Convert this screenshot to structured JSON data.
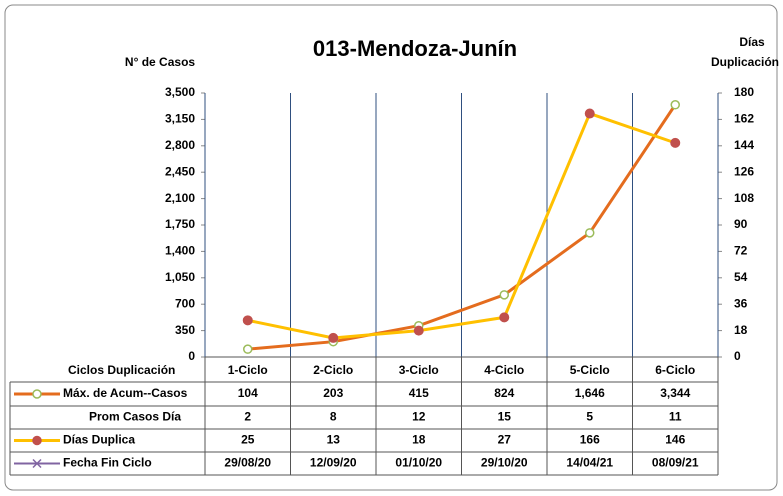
{
  "chart_data": {
    "type": "line",
    "title": "013-Mendoza-Junín",
    "ylabel": "N° de Casos",
    "y2label_lines": [
      "Días",
      "Duplicación"
    ],
    "table_header": "Ciclos Duplicación",
    "categories": [
      "1-Ciclo",
      "2-Ciclo",
      "3-Ciclo",
      "4-Ciclo",
      "5-Ciclo",
      "6-Ciclo"
    ],
    "ylim": [
      0,
      3500
    ],
    "yticks": [
      0,
      350,
      700,
      {
        "value": 1050,
        "label": "1,050"
      },
      {
        "value": 1400,
        "label": "1,400"
      },
      {
        "value": 1750,
        "label": "1,750"
      },
      {
        "value": 2100,
        "label": "2,100"
      },
      {
        "value": 2450,
        "label": "2,450"
      },
      {
        "value": 2800,
        "label": "2,800"
      },
      {
        "value": 3150,
        "label": "3,150"
      },
      {
        "value": 3500,
        "label": "3,500"
      }
    ],
    "y2lim": [
      0,
      180
    ],
    "y2ticks": [
      0,
      18,
      36,
      54,
      72,
      90,
      108,
      126,
      144,
      162,
      180
    ],
    "grid": true,
    "series": [
      {
        "name": "Máx. de Acum--Casos",
        "color": "#e46c1e",
        "marker_color": "#9bbb59",
        "values": [
          104,
          203,
          415,
          824,
          1646,
          3344
        ],
        "value_labels": [
          "104",
          "203",
          "415",
          "824",
          "1,646",
          "3,344"
        ]
      },
      {
        "name": "Días Duplica",
        "color": "#ffc000",
        "marker_color": "#c0504d",
        "axis": "y2",
        "values": [
          25,
          13,
          18,
          27,
          166,
          146
        ]
      }
    ],
    "extra_rows": [
      {
        "name": "Prom Casos Día",
        "values": [
          2,
          8,
          12,
          15,
          5,
          11
        ],
        "after": 0
      },
      {
        "name": "Fecha Fin Ciclo",
        "color": "#8064a2",
        "values": [
          "29/08/20",
          "12/09/20",
          "01/10/20",
          "29/10/20",
          "14/04/21",
          "08/09/21"
        ],
        "after": 1
      }
    ]
  }
}
